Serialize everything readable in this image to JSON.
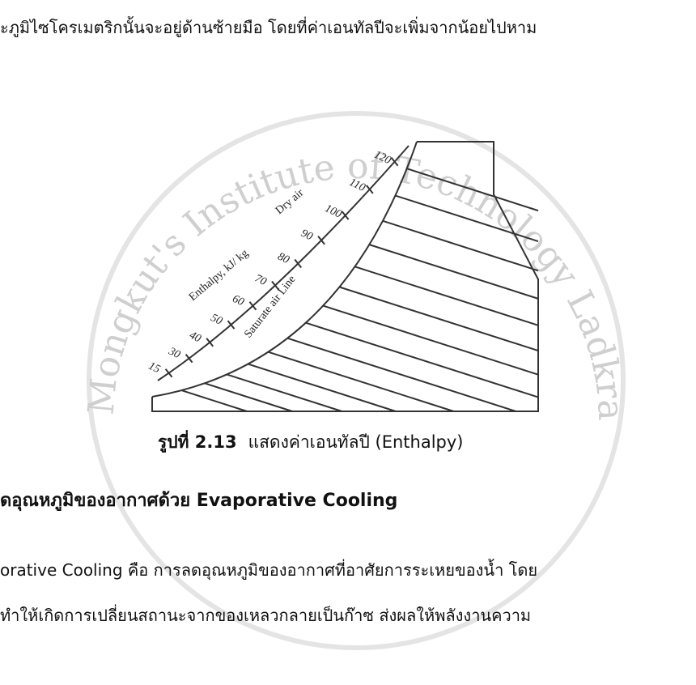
{
  "body": {
    "top_line": "ะภูมิไซโครเมตริกนั้นจะอยู่ด้านซ้ายมือ โดยที่ค่าเอนทัลปีจะเพิ่มจากน้อยไปหาม",
    "paragraph": [
      "orative Cooling คือ การลดอุณหภูมิของอากาศที่อาศัยการระเหยของน้ำ โดย",
      "ทำให้เกิดการเปลี่ยนสถานะจากของเหลวกลายเป็นก๊าซ ส่งผลให้พลังงานความ"
    ]
  },
  "figure": {
    "labels": {
      "axis": "Enthalpy, kJ/ kg",
      "axis_sub": "Dry air",
      "saturation": "Saturate air Line",
      "ticks": [
        "15",
        "30",
        "40",
        "50",
        "60",
        "70",
        "80",
        "90",
        "100",
        "110",
        "120"
      ]
    },
    "caption": {
      "number": "รูปที่ 2.13",
      "text": "แสดงค่าเอนทัลปี  (Enthalpy)"
    }
  },
  "heading": "ดอุณหภูมิของอากาศด้วย Evaporative Cooling",
  "watermark": "King Mongkut's Institute of Technology Ladkrabang"
}
